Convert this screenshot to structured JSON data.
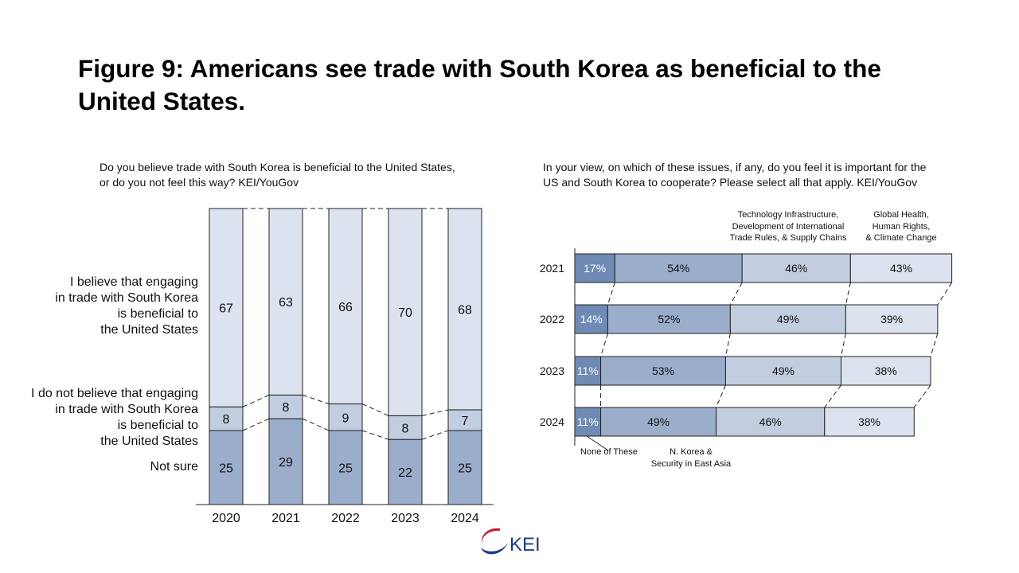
{
  "title": "Figure 9: Americans see trade with South Korea as beneficial to the United States.",
  "chart_data": [
    {
      "type": "bar",
      "stacked": true,
      "orientation": "vertical",
      "title": "Do you believe trade with South Korea is beneficial to the United States, or do you not feel this way? KEI/YouGov",
      "categories": [
        "2020",
        "2021",
        "2022",
        "2023",
        "2024"
      ],
      "series": [
        {
          "name": "Not sure",
          "values": [
            25,
            29,
            25,
            22,
            25
          ],
          "color": "#9aaecb"
        },
        {
          "name": "I do not believe that engaging\nin trade with South Korea\nis beneficial to\nthe United States",
          "values": [
            8,
            8,
            9,
            8,
            7
          ],
          "color": "#c2cde0"
        },
        {
          "name": "I believe that engaging\nin trade with South Korea\nis beneficial to\nthe United States",
          "values": [
            67,
            63,
            66,
            70,
            68
          ],
          "color": "#dde3ee"
        }
      ],
      "ylim": [
        0,
        100
      ],
      "grid": false,
      "legend": "left"
    },
    {
      "type": "bar",
      "stacked": true,
      "orientation": "horizontal",
      "title": "In your view, on which of these issues, if any, do you feel it is important for the US and South Korea to cooperate? Please select all that apply. KEI/YouGov",
      "categories": [
        "2021",
        "2022",
        "2023",
        "2024"
      ],
      "series": [
        {
          "name": "None of These",
          "values": [
            17,
            14,
            11,
            11
          ],
          "color": "#6f8ab5"
        },
        {
          "name": "N. Korea &\nSecurity in East Asia",
          "values": [
            54,
            52,
            53,
            49
          ],
          "color": "#9aaecb"
        },
        {
          "name": "Technology Infrastructure,\nDevelopment of International\nTrade Rules, & Supply Chains",
          "values": [
            46,
            49,
            49,
            46
          ],
          "color": "#c2cde0"
        },
        {
          "name": "Global Health,\nHuman Rights,\n& Climate Change",
          "values": [
            43,
            39,
            38,
            38
          ],
          "color": "#dde3ee"
        }
      ],
      "value_suffix": "%",
      "grid": false,
      "legend": "top / bottom"
    }
  ],
  "logo": {
    "text": "KEI",
    "color_red": "#c8202f",
    "color_blue": "#1f3b8f"
  }
}
